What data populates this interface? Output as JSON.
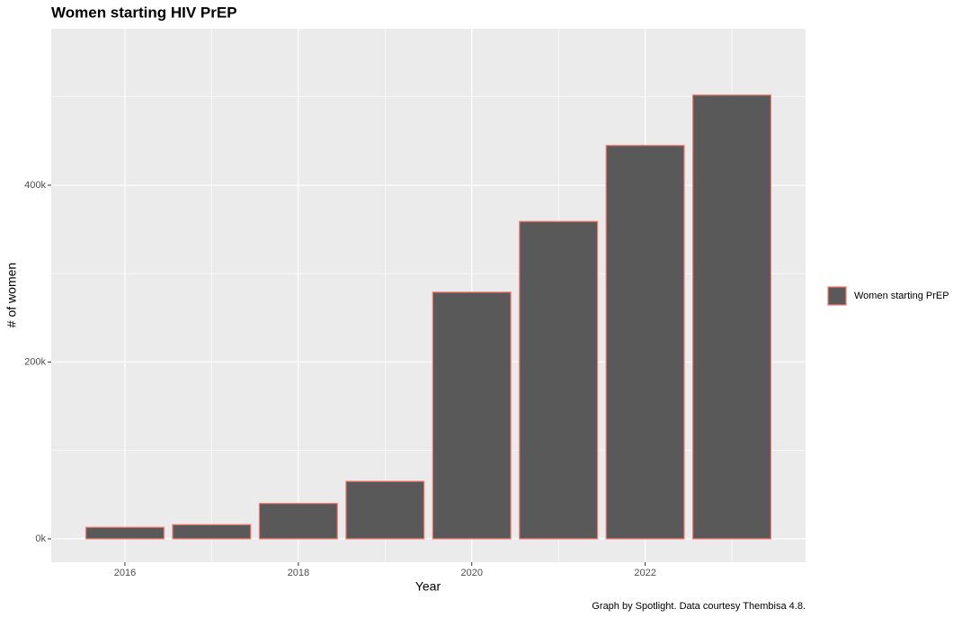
{
  "chart_data": {
    "type": "bar",
    "title": "Women starting HIV PrEP",
    "caption": "Graph by Spotlight. Data courtesy Thembisa 4.8.",
    "x_label": "Year",
    "y_label": "# of women",
    "x": [
      2016,
      2017,
      2018,
      2019,
      2020,
      2021,
      2022,
      2023
    ],
    "series": [
      {
        "name": "Women starting PrEP",
        "color": "#595959",
        "edgecolor": "#F8766D",
        "values": [
          13000,
          16000,
          40000,
          65000,
          279000,
          359000,
          445000,
          502000
        ]
      }
    ],
    "xlim": [
      2015.15,
      2023.85
    ],
    "xticks": [
      2016,
      2018,
      2020,
      2022
    ],
    "xminor": [
      2017,
      2019,
      2021,
      2023
    ],
    "ylim": [
      -26500,
      577000
    ],
    "yticks": [
      {
        "value": 0,
        "label": "0k"
      },
      {
        "value": 200000,
        "label": "200k"
      },
      {
        "value": 400000,
        "label": "400k"
      }
    ],
    "yminor": [
      100000,
      300000,
      500000
    ],
    "grid": true,
    "legend": "right"
  }
}
